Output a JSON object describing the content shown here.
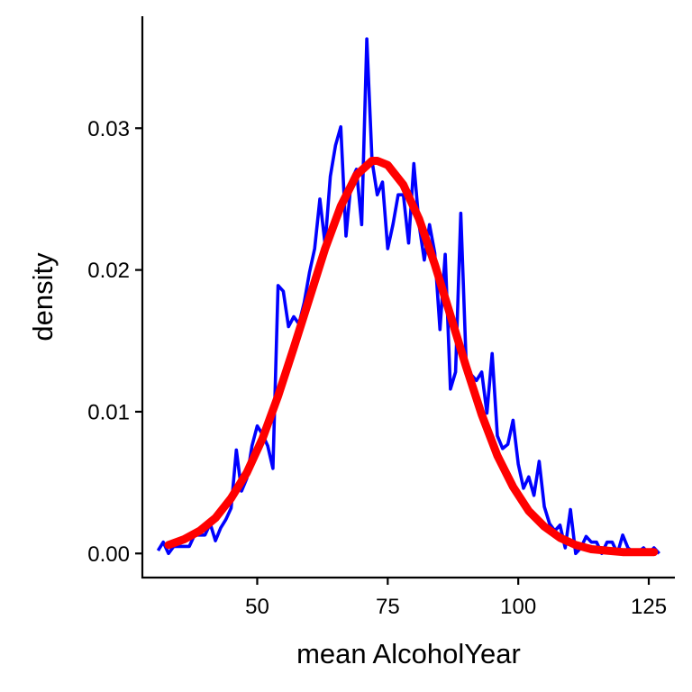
{
  "chart_data": {
    "type": "line",
    "title": "",
    "xlabel": "mean AlcoholYear",
    "ylabel": "density",
    "xlim": [
      28,
      130
    ],
    "ylim": [
      -0.0017,
      0.0379
    ],
    "x_ticks": [
      50,
      75,
      100,
      125
    ],
    "x_tick_labels": [
      "50",
      "75",
      "100",
      "125"
    ],
    "y_ticks": [
      0.0,
      0.01,
      0.02,
      0.03
    ],
    "y_tick_labels": [
      "0.00",
      "0.01",
      "0.02",
      "0.03"
    ],
    "grid": false,
    "legend": "none",
    "series": [
      {
        "style": "empirical",
        "color": "#0000FF",
        "points": [
          [
            31,
            0.0002
          ],
          [
            32,
            0.0008
          ],
          [
            33,
            0.0
          ],
          [
            34,
            0.0005
          ],
          [
            35,
            0.0005
          ],
          [
            36,
            0.0005
          ],
          [
            37,
            0.0005
          ],
          [
            38,
            0.0013
          ],
          [
            39,
            0.0013
          ],
          [
            40,
            0.0013
          ],
          [
            41,
            0.0021
          ],
          [
            42,
            0.0009
          ],
          [
            43,
            0.0018
          ],
          [
            44,
            0.0024
          ],
          [
            45,
            0.0032
          ],
          [
            46,
            0.0073
          ],
          [
            47,
            0.0044
          ],
          [
            48,
            0.0053
          ],
          [
            49,
            0.0076
          ],
          [
            50,
            0.009
          ],
          [
            51,
            0.0084
          ],
          [
            52,
            0.0076
          ],
          [
            53,
            0.006
          ],
          [
            54,
            0.0189
          ],
          [
            55,
            0.0185
          ],
          [
            56,
            0.016
          ],
          [
            57,
            0.0167
          ],
          [
            58,
            0.0162
          ],
          [
            59,
            0.0177
          ],
          [
            60,
            0.0198
          ],
          [
            61,
            0.0215
          ],
          [
            62,
            0.025
          ],
          [
            63,
            0.0218
          ],
          [
            64,
            0.0266
          ],
          [
            65,
            0.0288
          ],
          [
            66,
            0.0301
          ],
          [
            67,
            0.0224
          ],
          [
            68,
            0.0263
          ],
          [
            69,
            0.0271
          ],
          [
            70,
            0.0232
          ],
          [
            71,
            0.0363
          ],
          [
            72,
            0.0277
          ],
          [
            73,
            0.0253
          ],
          [
            74,
            0.0262
          ],
          [
            75,
            0.0215
          ],
          [
            76,
            0.0232
          ],
          [
            77,
            0.0253
          ],
          [
            78,
            0.0253
          ],
          [
            79,
            0.0219
          ],
          [
            80,
            0.0275
          ],
          [
            81,
            0.0232
          ],
          [
            82,
            0.0207
          ],
          [
            83,
            0.0232
          ],
          [
            84,
            0.0212
          ],
          [
            85,
            0.0158
          ],
          [
            86,
            0.0211
          ],
          [
            87,
            0.0116
          ],
          [
            88,
            0.0128
          ],
          [
            89,
            0.024
          ],
          [
            90,
            0.0137
          ],
          [
            91,
            0.0126
          ],
          [
            92,
            0.0122
          ],
          [
            93,
            0.0128
          ],
          [
            94,
            0.0099
          ],
          [
            95,
            0.0141
          ],
          [
            96,
            0.0083
          ],
          [
            97,
            0.0074
          ],
          [
            98,
            0.0077
          ],
          [
            99,
            0.0094
          ],
          [
            100,
            0.0063
          ],
          [
            101,
            0.0046
          ],
          [
            102,
            0.0054
          ],
          [
            103,
            0.0041
          ],
          [
            104,
            0.0065
          ],
          [
            105,
            0.0033
          ],
          [
            106,
            0.0021
          ],
          [
            107,
            0.0016
          ],
          [
            108,
            0.002
          ],
          [
            109,
            0.0004
          ],
          [
            110,
            0.0031
          ],
          [
            111,
            0.0
          ],
          [
            112,
            0.0004
          ],
          [
            113,
            0.0012
          ],
          [
            114,
            0.0008
          ],
          [
            115,
            0.0008
          ],
          [
            116,
            0.0
          ],
          [
            117,
            0.0008
          ],
          [
            118,
            0.0008
          ],
          [
            119,
            0.0
          ],
          [
            120,
            0.0013
          ],
          [
            121,
            0.0004
          ],
          [
            122,
            0.0001
          ],
          [
            123,
            0.0001
          ],
          [
            124,
            0.0004
          ],
          [
            125,
            0.0
          ],
          [
            126,
            0.0004
          ],
          [
            127,
            0.0
          ]
        ]
      },
      {
        "style": "normal-fit",
        "color": "#FF0000",
        "points": [
          [
            33,
            0.0006
          ],
          [
            36,
            0.001
          ],
          [
            39,
            0.0016
          ],
          [
            42,
            0.0025
          ],
          [
            45,
            0.0039
          ],
          [
            48,
            0.0057
          ],
          [
            51,
            0.0081
          ],
          [
            54,
            0.0111
          ],
          [
            57,
            0.0145
          ],
          [
            60,
            0.018
          ],
          [
            63,
            0.0215
          ],
          [
            66,
            0.0245
          ],
          [
            69,
            0.0267
          ],
          [
            72,
            0.0277
          ],
          [
            73,
            0.0277
          ],
          [
            75,
            0.0274
          ],
          [
            78,
            0.026
          ],
          [
            81,
            0.0236
          ],
          [
            84,
            0.0204
          ],
          [
            87,
            0.0168
          ],
          [
            90,
            0.0132
          ],
          [
            93,
            0.0098
          ],
          [
            96,
            0.0069
          ],
          [
            99,
            0.0047
          ],
          [
            102,
            0.003
          ],
          [
            105,
            0.0019
          ],
          [
            108,
            0.0011
          ],
          [
            111,
            0.0006
          ],
          [
            114,
            0.0003
          ],
          [
            117,
            0.0002
          ],
          [
            120,
            0.0001
          ],
          [
            123,
            0.0001
          ],
          [
            126,
            0.0001
          ]
        ]
      }
    ]
  }
}
